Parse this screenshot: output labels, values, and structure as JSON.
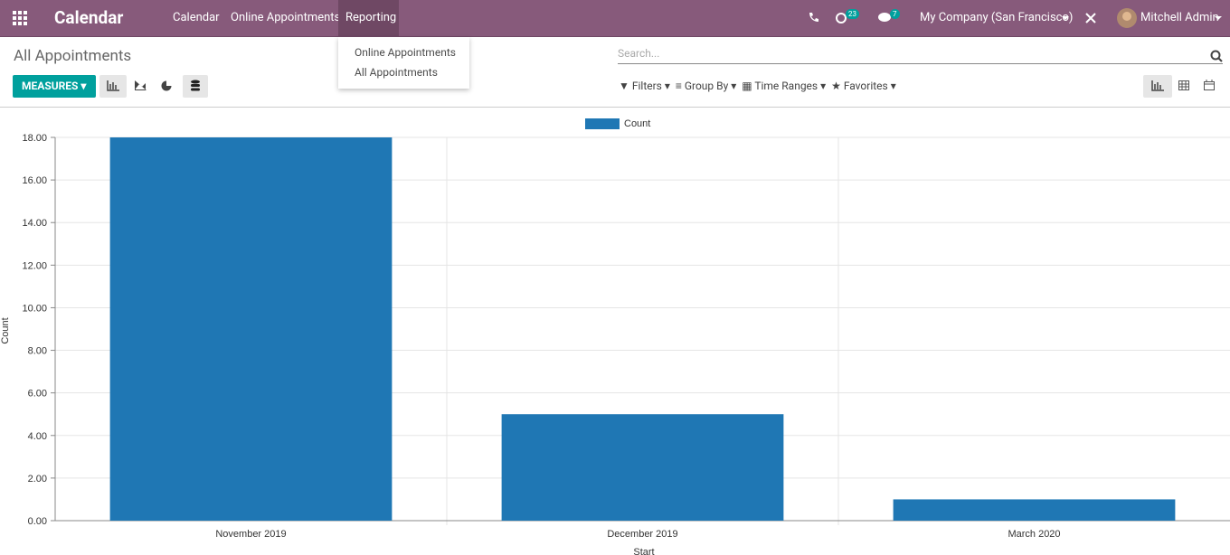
{
  "navbar": {
    "app": "Calendar",
    "menus": [
      "Calendar",
      "Online Appointments",
      "Reporting"
    ],
    "activity_badge": "23",
    "chat_badge": "7",
    "company": "My Company (San Francisco)",
    "user": "Mitchell Admin"
  },
  "dropdown": {
    "items": [
      "Online Appointments",
      "All Appointments"
    ]
  },
  "control_panel": {
    "title": "All Appointments",
    "search_placeholder": "Search...",
    "measures": "MEASURES",
    "filters": [
      "Filters",
      "Group By",
      "Time Ranges",
      "Favorites"
    ]
  },
  "chart_data": {
    "type": "bar",
    "categories": [
      "November 2019",
      "December 2019",
      "March 2020"
    ],
    "series": [
      {
        "name": "Count",
        "color": "#1f77b4",
        "values": [
          18,
          5,
          1
        ]
      }
    ],
    "ylim": [
      0,
      18
    ],
    "yticks": [
      {
        "value": 0,
        "label": "0.00"
      },
      {
        "value": 2,
        "label": "2.00"
      },
      {
        "value": 4,
        "label": "4.00"
      },
      {
        "value": 6,
        "label": "6.00"
      },
      {
        "value": 8,
        "label": "8.00"
      },
      {
        "value": 10,
        "label": "10.00"
      },
      {
        "value": 12,
        "label": "12.00"
      },
      {
        "value": 14,
        "label": "14.00"
      },
      {
        "value": 16,
        "label": "16.00"
      },
      {
        "value": 18,
        "label": "18.00"
      }
    ],
    "xlabel": "Start",
    "ylabel": "Count",
    "grid": true,
    "legend": "top"
  }
}
